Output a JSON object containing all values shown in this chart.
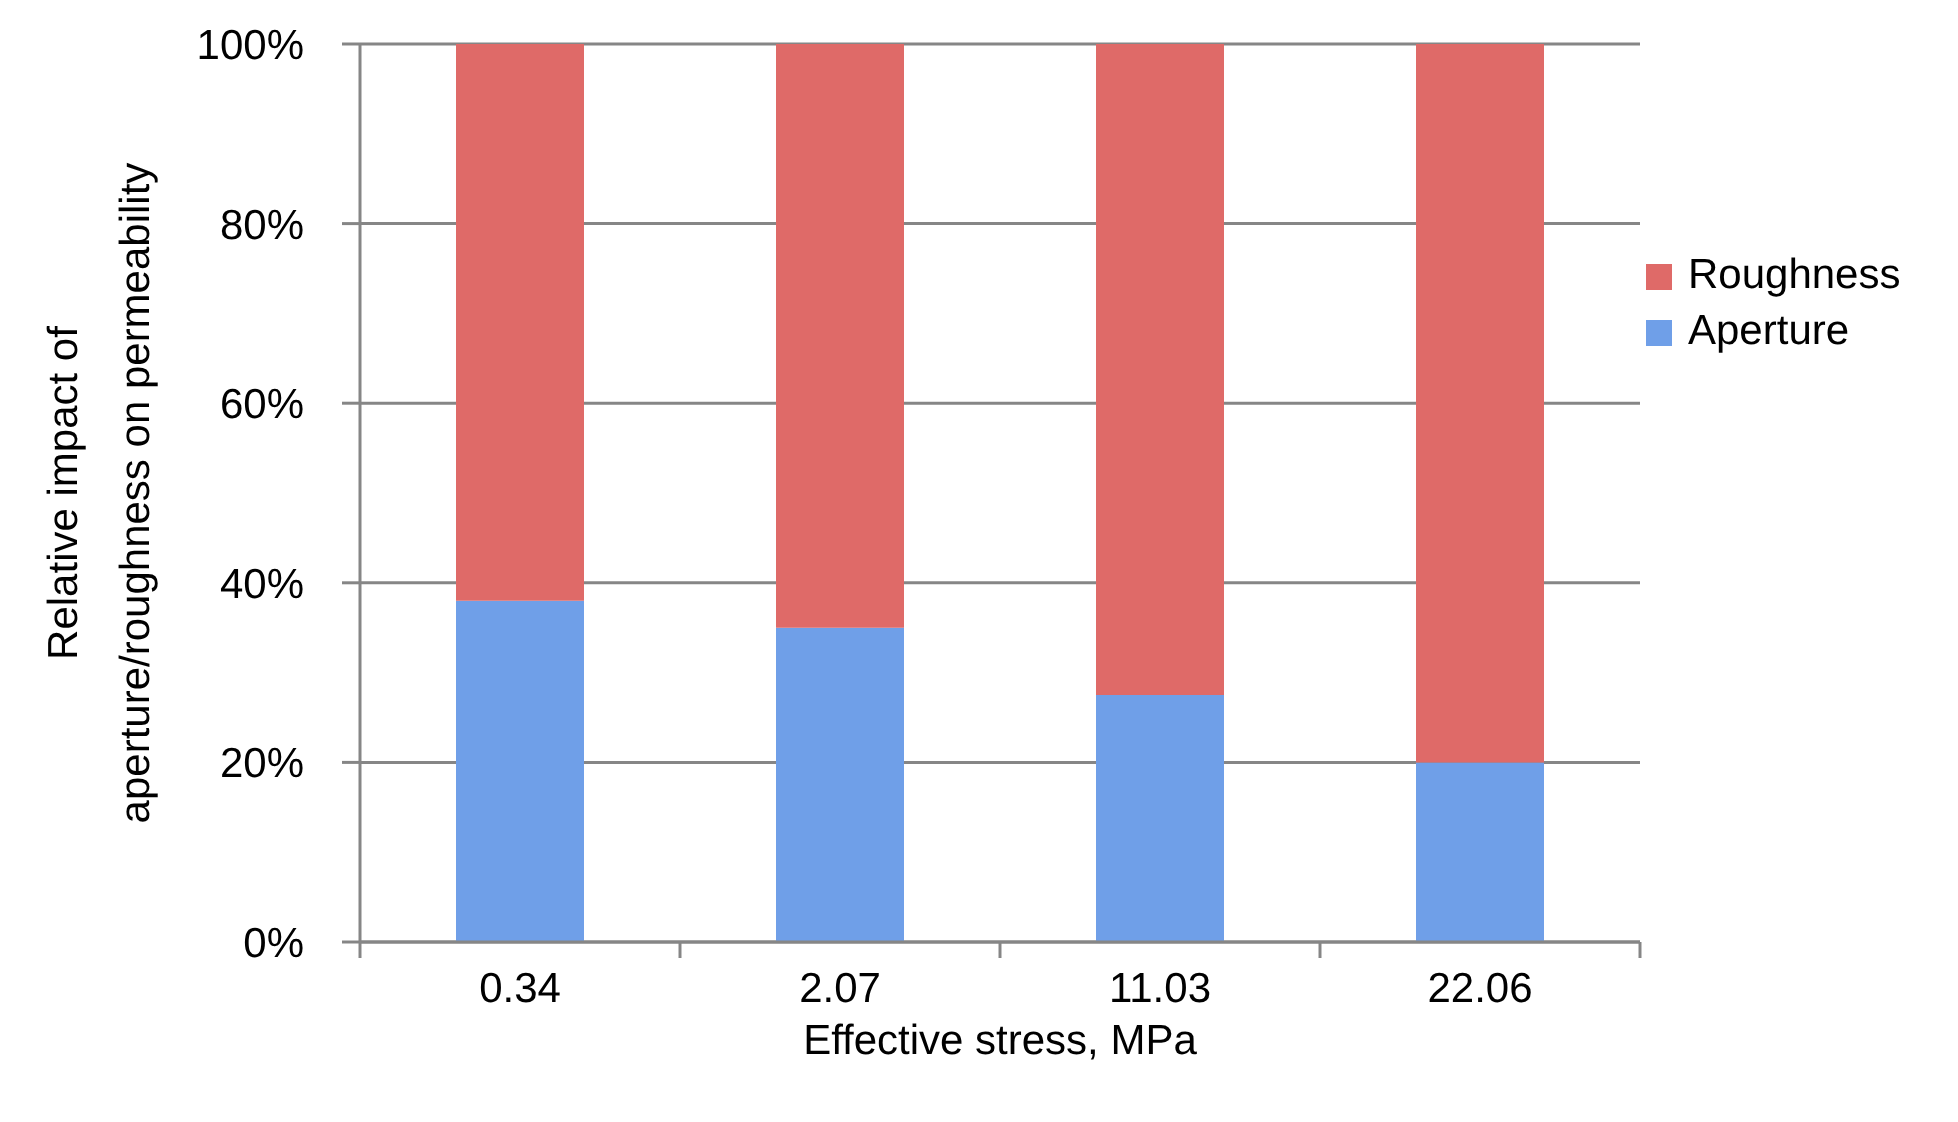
{
  "chart_data": {
    "type": "bar",
    "stacked": true,
    "categories": [
      "0.34",
      "2.07",
      "11.03",
      "22.06"
    ],
    "series": [
      {
        "name": "Aperture",
        "color": "#6f9fe8",
        "values": [
          38,
          35,
          27.5,
          20
        ]
      },
      {
        "name": "Roughness",
        "color": "#df6a68",
        "values": [
          62,
          65,
          72.5,
          80
        ]
      }
    ],
    "xlabel": "Effective stress, MPa",
    "ylabel": "Relative impact of\naperture/roughness on permeability",
    "ylim": [
      0,
      100
    ],
    "yticks": [
      {
        "value": 0,
        "label": "0%"
      },
      {
        "value": 20,
        "label": "20%"
      },
      {
        "value": 40,
        "label": "40%"
      },
      {
        "value": 60,
        "label": "60%"
      },
      {
        "value": 80,
        "label": "80%"
      },
      {
        "value": 100,
        "label": "100%"
      }
    ],
    "grid": "y",
    "legend": "right"
  }
}
